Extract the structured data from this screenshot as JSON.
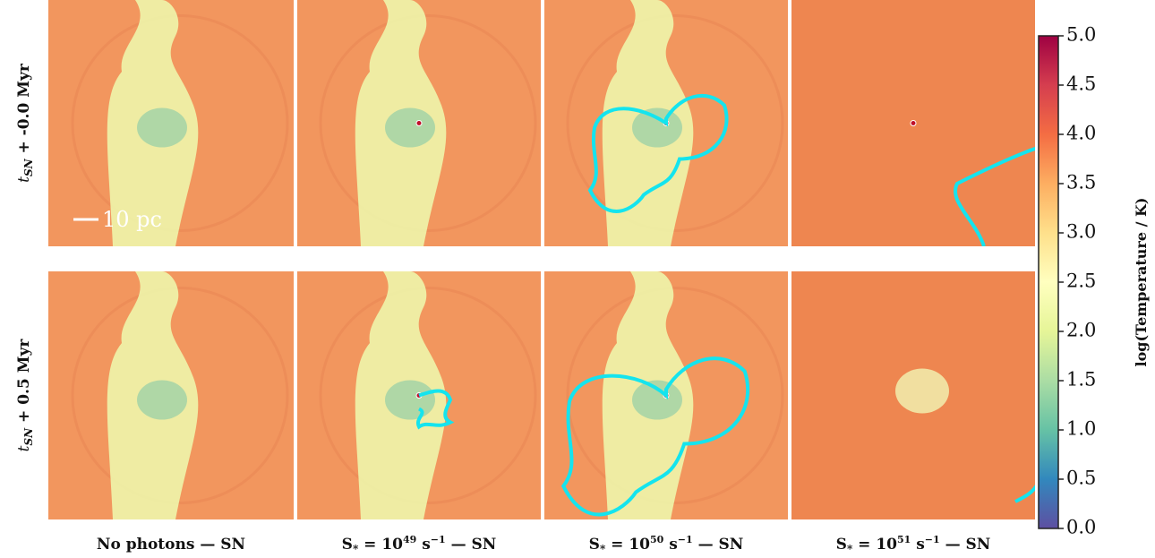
{
  "figure": {
    "row_labels": [
      {
        "symbol": "t",
        "subscript": "SN",
        "text": " + -0.0 Myr"
      },
      {
        "symbol": "t",
        "subscript": "SN",
        "text": " + 0.5 Myr"
      }
    ],
    "column_labels": [
      {
        "text": "No photons — SN"
      },
      {
        "base": "S",
        "sub": "*",
        "eq": " = 10",
        "exp": "49",
        "unit": " s",
        "unit_exp": "−1",
        "tail": " — SN"
      },
      {
        "base": "S",
        "sub": "*",
        "eq": " = 10",
        "exp": "50",
        "unit": " s",
        "unit_exp": "−1",
        "tail": " — SN"
      },
      {
        "base": "S",
        "sub": "*",
        "eq": " = 10",
        "exp": "51",
        "unit": " s",
        "unit_exp": "−1",
        "tail": " — SN"
      }
    ],
    "scale_bar": "10 pc",
    "colorbar": {
      "label": "log(Temperature / K)",
      "lim": [
        0,
        5
      ],
      "ticks": [
        {
          "value": 0,
          "label": "0.0"
        },
        {
          "value": 0.5,
          "label": "0.5"
        },
        {
          "value": 1,
          "label": "1.0"
        },
        {
          "value": 1.5,
          "label": "1.5"
        },
        {
          "value": 2,
          "label": "2.0"
        },
        {
          "value": 2.5,
          "label": "2.5"
        },
        {
          "value": 3,
          "label": "3.0"
        },
        {
          "value": 3.5,
          "label": "3.5"
        },
        {
          "value": 4,
          "label": "4.0"
        },
        {
          "value": 4.5,
          "label": "4.5"
        },
        {
          "value": 5,
          "label": "5.0"
        }
      ]
    }
  }
}
